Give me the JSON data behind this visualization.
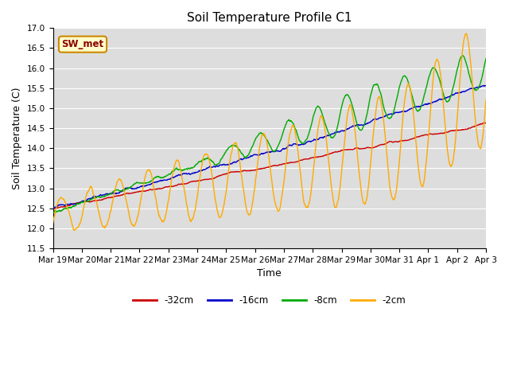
{
  "title": "Soil Temperature Profile C1",
  "xlabel": "Time",
  "ylabel": "Soil Temperature (C)",
  "ylim": [
    11.5,
    17.0
  ],
  "yticks": [
    11.5,
    12.0,
    12.5,
    13.0,
    13.5,
    14.0,
    14.5,
    15.0,
    15.5,
    16.0,
    16.5,
    17.0
  ],
  "xtick_labels": [
    "Mar 19",
    "Mar 20",
    "Mar 21",
    "Mar 22",
    "Mar 23",
    "Mar 24",
    "Mar 25",
    "Mar 26",
    "Mar 27",
    "Mar 28",
    "Mar 29",
    "Mar 30",
    "Mar 31",
    "Apr 1",
    "Apr 2",
    "Apr 3"
  ],
  "legend_labels": [
    "-32cm",
    "-16cm",
    "-8cm",
    "-2cm"
  ],
  "line_colors": [
    "#cc0000",
    "#0000cc",
    "#00aa00",
    "#ffaa00"
  ],
  "annotation_text": "SW_met",
  "annotation_bg": "#ffffcc",
  "annotation_border": "#cc8800",
  "fig_bg": "#ffffff",
  "plot_bg": "#dddddd",
  "grid_color": "#ffffff",
  "n_points": 1440,
  "title_fontsize": 11,
  "axis_label_fontsize": 9,
  "tick_fontsize": 7.5
}
